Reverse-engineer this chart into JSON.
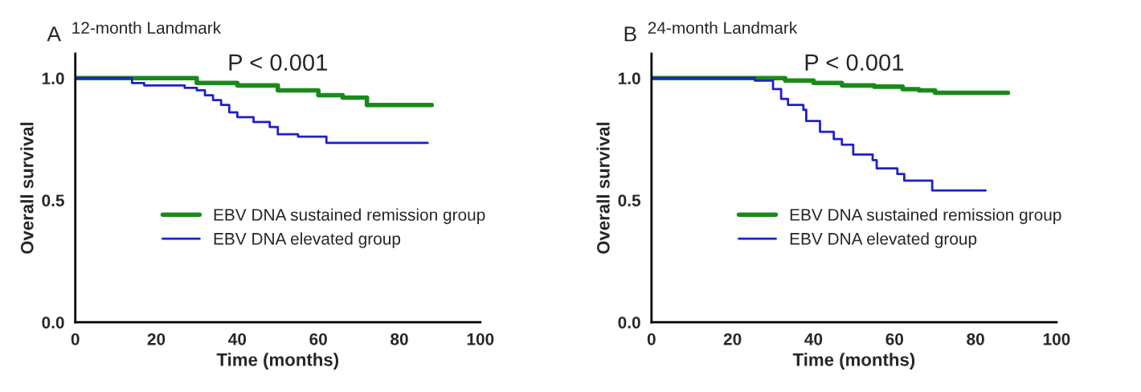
{
  "chart_data": [
    {
      "type": "step",
      "title": "12-month Landmark",
      "xlabel": "Time (months)",
      "ylabel": "Overall survival",
      "annotations": [
        "A",
        "P < 0.001"
      ],
      "xlim": [
        0,
        100
      ],
      "xticks": [
        0,
        20,
        40,
        60,
        80,
        100
      ],
      "ylim": [
        0,
        1.1
      ],
      "yticks": [
        {
          "value": 0,
          "label": "0.0"
        },
        {
          "value": 0.5,
          "label": "0.5"
        },
        {
          "value": 1.0,
          "label": "1.0"
        }
      ],
      "grid": false,
      "legend": "center right",
      "series": [
        {
          "name": "EBV DNA sustained remission group",
          "color": "#1a8a1a",
          "x": [
            0,
            13,
            30,
            40,
            50,
            60,
            66,
            72,
            88
          ],
          "values": [
            1.0,
            1.0,
            0.98,
            0.97,
            0.95,
            0.93,
            0.92,
            0.89,
            0.89
          ]
        },
        {
          "name": "EBV DNA elevated group",
          "color": "#1f1fc8",
          "x": [
            0,
            14,
            17,
            27,
            30,
            32,
            34,
            36,
            38,
            40,
            44,
            48,
            50,
            55,
            62,
            87
          ],
          "values": [
            1.0,
            0.98,
            0.97,
            0.96,
            0.95,
            0.93,
            0.91,
            0.89,
            0.86,
            0.84,
            0.82,
            0.8,
            0.77,
            0.76,
            0.735,
            0.735
          ]
        }
      ]
    },
    {
      "type": "step",
      "title": "24-month Landmark",
      "xlabel": "Time (months)",
      "ylabel": "Overall survival",
      "annotations": [
        "B",
        "P < 0.001"
      ],
      "xlim": [
        0,
        100
      ],
      "xticks": [
        0,
        20,
        40,
        60,
        80,
        100
      ],
      "ylim": [
        0,
        1.1
      ],
      "yticks": [
        {
          "value": 0,
          "label": "0.0"
        },
        {
          "value": 0.5,
          "label": "0.5"
        },
        {
          "value": 1.0,
          "label": "1.0"
        }
      ],
      "grid": false,
      "legend": "center right",
      "series": [
        {
          "name": "EBV DNA sustained remission group",
          "color": "#1a8a1a",
          "x": [
            0,
            25,
            33,
            40,
            47,
            55,
            62,
            66,
            70,
            88
          ],
          "values": [
            1.0,
            1.0,
            0.99,
            0.98,
            0.97,
            0.965,
            0.955,
            0.95,
            0.94,
            0.94
          ]
        },
        {
          "name": "EBV DNA elevated group",
          "color": "#1f1fc8",
          "x": [
            0,
            25.5,
            30,
            32,
            33.7,
            37.5,
            38.2,
            41.6,
            45,
            47,
            49.8,
            54.6,
            55.6,
            60.7,
            62.4,
            69.3,
            82.5
          ],
          "values": [
            1.0,
            0.99,
            0.955,
            0.915,
            0.89,
            0.87,
            0.824,
            0.78,
            0.75,
            0.727,
            0.687,
            0.664,
            0.63,
            0.607,
            0.58,
            0.54,
            0.54
          ]
        }
      ]
    }
  ]
}
